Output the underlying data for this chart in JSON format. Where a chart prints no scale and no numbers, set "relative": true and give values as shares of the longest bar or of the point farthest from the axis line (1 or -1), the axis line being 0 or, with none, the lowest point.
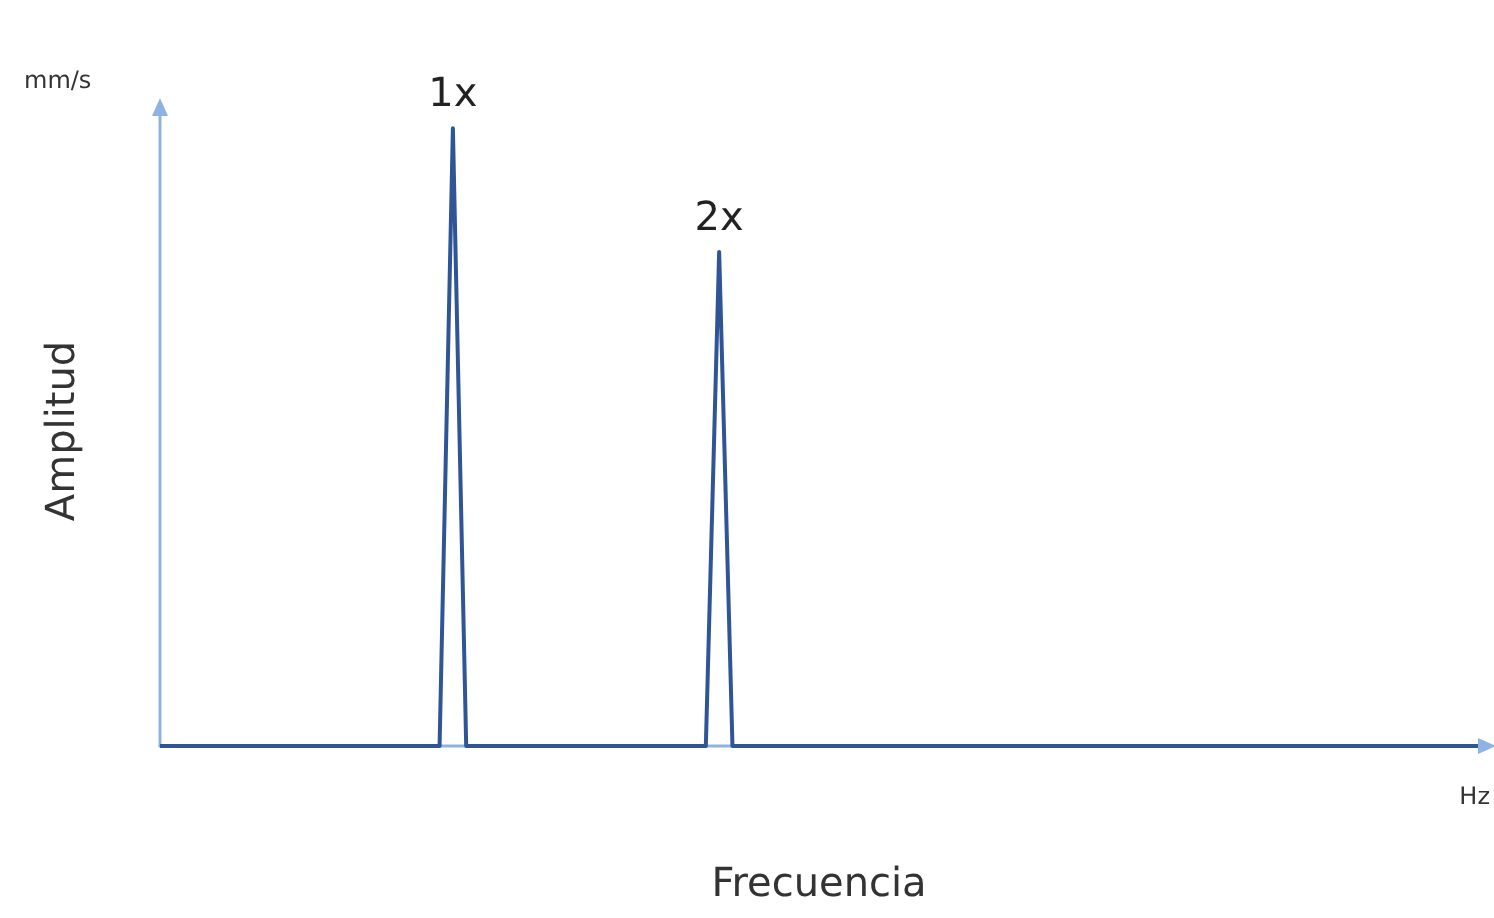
{
  "chart_data": {
    "type": "line",
    "relative": true,
    "xlabel": "Frecuencia",
    "ylabel": "Amplitud",
    "annotations": [
      "mm/s",
      "Hz",
      {
        "text": "1x",
        "y": 1
      },
      {
        "text": "2x",
        "y": 0.8
      }
    ],
    "categories": [
      null,
      null,
      null,
      null,
      null,
      null,
      null,
      null,
      null,
      null,
      null,
      null,
      null,
      null,
      null,
      null,
      null,
      null,
      null,
      null,
      null,
      null,
      null,
      null,
      null,
      null,
      null,
      null,
      null,
      null,
      null,
      null,
      null,
      null,
      null,
      null,
      null,
      null,
      null,
      null,
      null,
      null,
      null,
      null,
      null,
      null,
      null,
      null,
      null,
      null,
      null,
      null,
      null,
      null,
      null,
      null,
      null,
      null,
      null,
      null,
      null,
      null,
      null,
      null,
      null,
      null,
      null,
      null,
      null,
      null,
      null,
      null,
      null,
      null,
      null,
      null,
      null,
      null,
      null,
      null,
      null,
      null,
      null,
      null,
      null,
      null,
      null,
      null,
      null,
      null,
      null,
      null,
      null,
      null,
      null,
      null,
      null,
      null,
      null,
      null
    ],
    "series": [
      {
        "color": "#2f5597",
        "values": [
          0,
          0,
          0,
          0,
          0,
          0,
          0,
          0,
          0,
          0,
          0,
          0,
          0,
          0,
          0,
          0,
          0,
          0,
          0,
          0,
          0,
          0,
          1,
          0,
          0,
          0,
          0,
          0,
          0,
          0,
          0,
          0,
          0,
          0,
          0,
          0,
          0,
          0,
          0,
          0,
          0,
          0,
          0.8,
          0,
          0,
          0,
          0,
          0,
          0,
          0,
          0,
          0,
          0,
          0,
          0,
          0,
          0,
          0,
          0,
          0,
          0,
          0,
          0,
          0,
          0,
          0,
          0,
          0,
          0,
          0,
          0,
          0,
          0,
          0,
          0,
          0,
          0,
          0,
          0,
          0,
          0,
          0,
          0,
          0,
          0,
          0,
          0,
          0,
          0,
          0,
          0,
          0,
          0,
          0,
          0,
          0,
          0,
          0,
          0,
          0
        ]
      }
    ],
    "grid": false,
    "marker": "none",
    "line_style": "solid"
  }
}
